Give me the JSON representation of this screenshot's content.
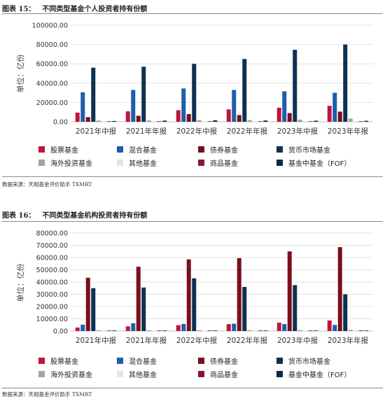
{
  "figures": [
    {
      "title_num": "图表 15：",
      "title_text": "不同类型基金个人投资者持有份额",
      "source": "数据来源：天相基金评价助手 TXMRT"
    },
    {
      "title_num": "图表 16：",
      "title_text": "不同类型基金机构投资者持有份额",
      "source": "数据来源：天相基金评价助手 TXMRT"
    }
  ],
  "colors": [
    "#c0143c",
    "#1f5ea8",
    "#7a0f1e",
    "#0d3152",
    "#a3a3a3",
    "#e4e4e4",
    "#8b1530",
    "#0d2a45"
  ],
  "chart_data": [
    {
      "type": "bar",
      "ylabel": "单位：亿份",
      "ylim": [
        0,
        100000
      ],
      "yticks": [
        "0.00",
        "20000.00",
        "40000.00",
        "60000.00",
        "80000.00",
        "100000.00"
      ],
      "grid": true,
      "legend": "bottom",
      "categories": [
        "2021年中报",
        "2021年年报",
        "2022年中报",
        "2022年年报",
        "2023年中报",
        "2023年年报"
      ],
      "series": [
        {
          "name": "股票基金",
          "values": [
            9500,
            10800,
            12000,
            12800,
            14500,
            16500
          ]
        },
        {
          "name": "混合基金",
          "values": [
            30500,
            33000,
            34500,
            33000,
            31500,
            30000
          ]
        },
        {
          "name": "债券基金",
          "values": [
            4800,
            6200,
            8000,
            7000,
            9000,
            10500
          ]
        },
        {
          "name": "货币市场基金",
          "values": [
            56000,
            57000,
            60000,
            65000,
            74500,
            80000
          ]
        },
        {
          "name": "海外投资基金",
          "values": [
            1300,
            1500,
            1800,
            1800,
            2200,
            3200
          ]
        },
        {
          "name": "其他基金",
          "values": [
            200,
            200,
            200,
            200,
            200,
            200
          ]
        },
        {
          "name": "商品基金",
          "values": [
            500,
            600,
            500,
            500,
            500,
            500
          ]
        },
        {
          "name": "基金中基金（FOF）",
          "values": [
            800,
            1200,
            1500,
            1300,
            1100,
            1000
          ]
        }
      ]
    },
    {
      "type": "bar",
      "ylabel": "单位：亿份",
      "ylim": [
        0,
        80000
      ],
      "yticks": [
        "0.00",
        "10000.00",
        "20000.00",
        "30000.00",
        "40000.00",
        "50000.00",
        "60000.00",
        "70000.00",
        "80000.00"
      ],
      "grid": true,
      "legend": "bottom",
      "categories": [
        "2021年中报",
        "2021年年报",
        "2022年中报",
        "2022年年报",
        "2023年中报",
        "2023年年报"
      ],
      "series": [
        {
          "name": "股票基金",
          "values": [
            2800,
            3800,
            4800,
            5600,
            6800,
            8600
          ]
        },
        {
          "name": "混合基金",
          "values": [
            5200,
            6300,
            5800,
            6000,
            5700,
            5000
          ]
        },
        {
          "name": "债券基金",
          "values": [
            43500,
            52500,
            58500,
            59500,
            65000,
            68500
          ]
        },
        {
          "name": "货币市场基金",
          "values": [
            35000,
            35500,
            43000,
            36000,
            37500,
            30000
          ]
        },
        {
          "name": "海外投资基金",
          "values": [
            600,
            700,
            700,
            700,
            800,
            1000
          ]
        },
        {
          "name": "其他基金",
          "values": [
            150,
            150,
            150,
            150,
            150,
            150
          ]
        },
        {
          "name": "商品基金",
          "values": [
            300,
            400,
            400,
            400,
            500,
            500
          ]
        },
        {
          "name": "基金中基金（FOF）",
          "values": [
            300,
            400,
            400,
            400,
            400,
            400
          ]
        }
      ]
    }
  ]
}
